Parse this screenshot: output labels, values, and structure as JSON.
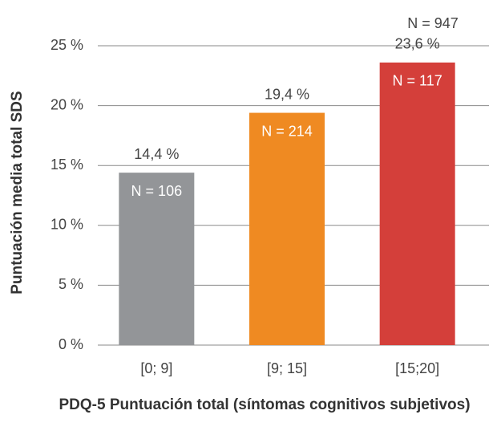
{
  "chart_data": {
    "type": "bar",
    "y_label": "Puntuación media total SDS",
    "x_label": "PDQ-5 Puntuación total (síntomas cognitivos subjetivos)",
    "annotation": "N = 947",
    "categories": [
      "[0; 9]",
      "[9; 15]",
      "[15;20]"
    ],
    "values": [
      14.4,
      19.4,
      23.6
    ],
    "value_labels": [
      "14,4 %",
      "19,4 %",
      "23,6 %"
    ],
    "bar_labels": [
      "N = 106",
      "N = 214",
      "N = 117"
    ],
    "colors": [
      "#939598",
      "#ef8a22",
      "#d43f3a"
    ],
    "ylim": [
      0,
      25
    ],
    "yticks": [
      {
        "value": 0,
        "label": "0 %"
      },
      {
        "value": 5,
        "label": "5 %"
      },
      {
        "value": 10,
        "label": "10 %"
      },
      {
        "value": 15,
        "label": "15 %"
      },
      {
        "value": 20,
        "label": "20 %"
      },
      {
        "value": 25,
        "label": "25 %"
      }
    ],
    "grid": true
  }
}
